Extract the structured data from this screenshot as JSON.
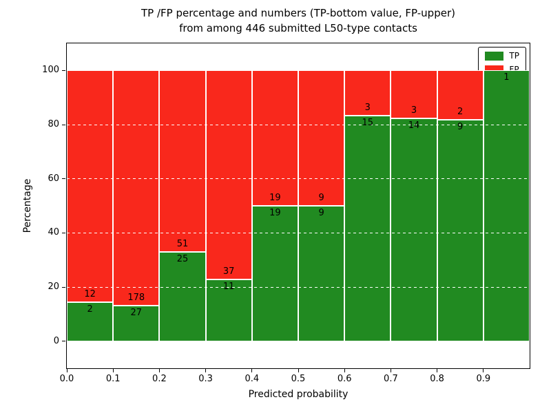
{
  "title": {
    "line1": "TP /FP percentage and numbers (TP-bottom value, FP-upper)",
    "line2": "from among 446 submitted L50-type contacts"
  },
  "chart_data": {
    "type": "bar",
    "stacked": true,
    "normalized_to_percent": true,
    "title": "TP /FP percentage and numbers (TP-bottom value, FP-upper) from among 446 submitted L50-type contacts",
    "xlabel": "Predicted probability",
    "ylabel": "Percentage",
    "xlim": [
      0.0,
      1.0
    ],
    "ylim": [
      -10,
      110
    ],
    "x_ticks": [
      "0.0",
      "0.1",
      "0.2",
      "0.3",
      "0.4",
      "0.5",
      "0.6",
      "0.7",
      "0.8",
      "0.9"
    ],
    "y_ticks": [
      0,
      20,
      40,
      60,
      80,
      100
    ],
    "grid": "white dashed",
    "bins": [
      {
        "range": [
          0.0,
          0.1
        ],
        "tp": 2,
        "fp": 12
      },
      {
        "range": [
          0.1,
          0.2
        ],
        "tp": 27,
        "fp": 178
      },
      {
        "range": [
          0.2,
          0.3
        ],
        "tp": 25,
        "fp": 51
      },
      {
        "range": [
          0.3,
          0.4
        ],
        "tp": 11,
        "fp": 37
      },
      {
        "range": [
          0.4,
          0.5
        ],
        "tp": 19,
        "fp": 19
      },
      {
        "range": [
          0.5,
          0.6
        ],
        "tp": 9,
        "fp": 9
      },
      {
        "range": [
          0.6,
          0.7
        ],
        "tp": 15,
        "fp": 3
      },
      {
        "range": [
          0.7,
          0.8
        ],
        "tp": 14,
        "fp": 3
      },
      {
        "range": [
          0.8,
          0.9
        ],
        "tp": 9,
        "fp": 2
      },
      {
        "range": [
          0.9,
          1.0
        ],
        "tp": 1,
        "fp": 0
      }
    ],
    "series": [
      {
        "name": "TP",
        "color": "#218a21"
      },
      {
        "name": "FP",
        "color": "#f9281c"
      }
    ],
    "legend": {
      "position": "upper right",
      "entries": [
        {
          "label": "TP",
          "color": "#218a21"
        },
        {
          "label": "FP",
          "color": "#f9281c"
        }
      ]
    }
  }
}
